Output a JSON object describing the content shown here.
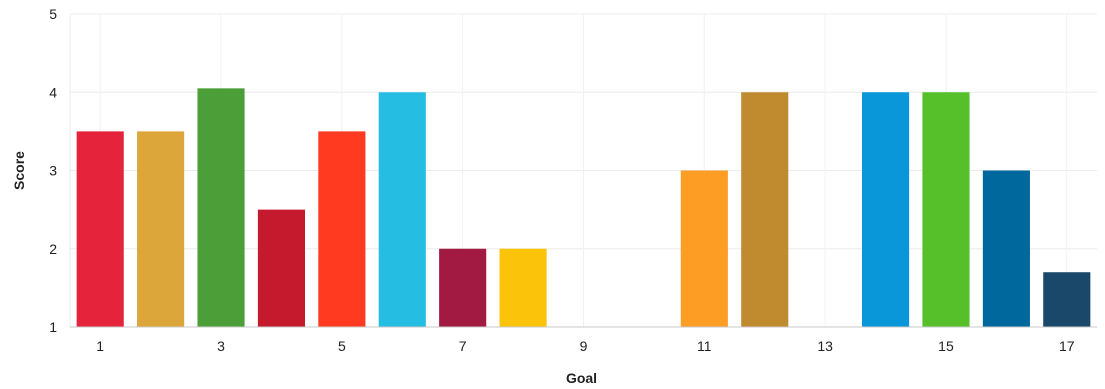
{
  "chart_data": {
    "type": "bar",
    "title": "",
    "xlabel": "Goal",
    "ylabel": "Score",
    "categories": [
      1,
      2,
      3,
      4,
      5,
      6,
      7,
      8,
      9,
      10,
      11,
      12,
      13,
      14,
      15,
      16,
      17
    ],
    "x_tick_labels": [
      "1",
      "3",
      "5",
      "7",
      "9",
      "11",
      "13",
      "15",
      "17"
    ],
    "y_tick_labels": [
      "1",
      "2",
      "3",
      "4",
      "5"
    ],
    "values": [
      3.5,
      3.5,
      4.05,
      2.5,
      3.5,
      4.0,
      2.0,
      2.0,
      null,
      null,
      3.0,
      4.0,
      null,
      4.0,
      4.0,
      3.0,
      1.7
    ],
    "colors": [
      "#E5243B",
      "#DDA63A",
      "#4C9F38",
      "#C5192D",
      "#FF3A21",
      "#26BDE2",
      "#A21942",
      "#FCC30B",
      "#FD6925",
      "#DD1367",
      "#FD9D24",
      "#BF8B2E",
      "#3F7E44",
      "#0A97D9",
      "#56C02B",
      "#00689D",
      "#19486A"
    ],
    "ylim": [
      1,
      5
    ],
    "grid": true,
    "legend": "none"
  }
}
